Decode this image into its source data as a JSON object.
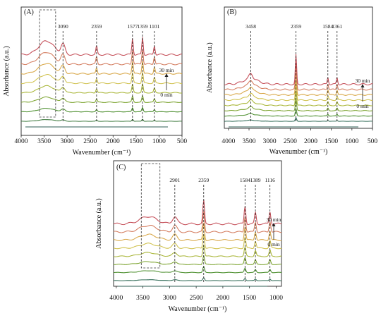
{
  "chart_data": [
    {
      "panel": "(A)",
      "type": "line",
      "ylabel": "Absorbance (a.u.)",
      "xlabel": "Wavenumber (cm⁻¹)",
      "x_ticks": [
        4000,
        3500,
        3000,
        2500,
        2000,
        1500,
        1000,
        500
      ],
      "xlim": [
        4000,
        500
      ],
      "time_labels": {
        "start": "0 min",
        "end": "30 min"
      },
      "peaks": [
        {
          "label": "3090",
          "x": 3090,
          "h": 0.55
        },
        {
          "label": "2359",
          "x": 2359,
          "h": 0.45
        },
        {
          "label": "1577",
          "x": 1577,
          "h": 0.9
        },
        {
          "label": "1359",
          "x": 1359,
          "h": 0.95
        },
        {
          "label": "1101",
          "x": 1101,
          "h": 0.5
        }
      ],
      "broad_band": {
        "center": 3450,
        "width": 230,
        "h": 0.75
      },
      "box": [
        3600,
        3250
      ],
      "series_colors": [
        "#3e7a3e",
        "#4c8f2e",
        "#7ba32e",
        "#a8b536",
        "#cfc04a",
        "#d8a645",
        "#d37a5c",
        "#c44b55"
      ]
    },
    {
      "panel": "(B)",
      "type": "line",
      "ylabel": "Absorbance (a.u.)",
      "xlabel": "Wavenumber (cm⁻¹)",
      "x_ticks": [
        4000,
        3500,
        3000,
        2500,
        2000,
        1500,
        1000,
        500
      ],
      "xlim": [
        4100,
        500
      ],
      "time_labels": {
        "start": "0 min",
        "end": "30 min"
      },
      "peaks": [
        {
          "label": "3458",
          "x": 3458,
          "h": 0.3
        },
        {
          "label": "2359",
          "x": 2359,
          "h": 1.6
        },
        {
          "label": "1584",
          "x": 1584,
          "h": 0.38
        },
        {
          "label": "1361",
          "x": 1361,
          "h": 0.38
        }
      ],
      "broad_band": {
        "center": 3458,
        "width": 260,
        "h": 0.3
      },
      "series_colors": [
        "#2f6a55",
        "#4c8f2e",
        "#7ba32e",
        "#a8b536",
        "#cfc04a",
        "#d8a645",
        "#d37a5c",
        "#c44b55"
      ]
    },
    {
      "panel": "(C)",
      "type": "line",
      "ylabel": "Absorbance (a.u.)",
      "xlabel": "Wavenumber (cm⁻¹)",
      "x_ticks": [
        4000,
        3500,
        3000,
        2500,
        2000,
        1500,
        1000
      ],
      "xlim": [
        4050,
        900
      ],
      "time_labels": {
        "start": "0 min",
        "end": "30 min"
      },
      "peaks": [
        {
          "label": "2901",
          "x": 2901,
          "h": 0.35
        },
        {
          "label": "2359",
          "x": 2359,
          "h": 1.1
        },
        {
          "label": "1584",
          "x": 1584,
          "h": 0.85
        },
        {
          "label": "1389",
          "x": 1389,
          "h": 0.55
        },
        {
          "label": "1116",
          "x": 1116,
          "h": 0.6
        }
      ],
      "broad_band": {
        "center": 3400,
        "width": 220,
        "h": 0.35
      },
      "box": [
        3530,
        3180
      ],
      "series_colors": [
        "#2f6a55",
        "#4c8f2e",
        "#7ba32e",
        "#a8b536",
        "#cfc04a",
        "#d8a645",
        "#d37a5c",
        "#c44b55"
      ]
    }
  ]
}
